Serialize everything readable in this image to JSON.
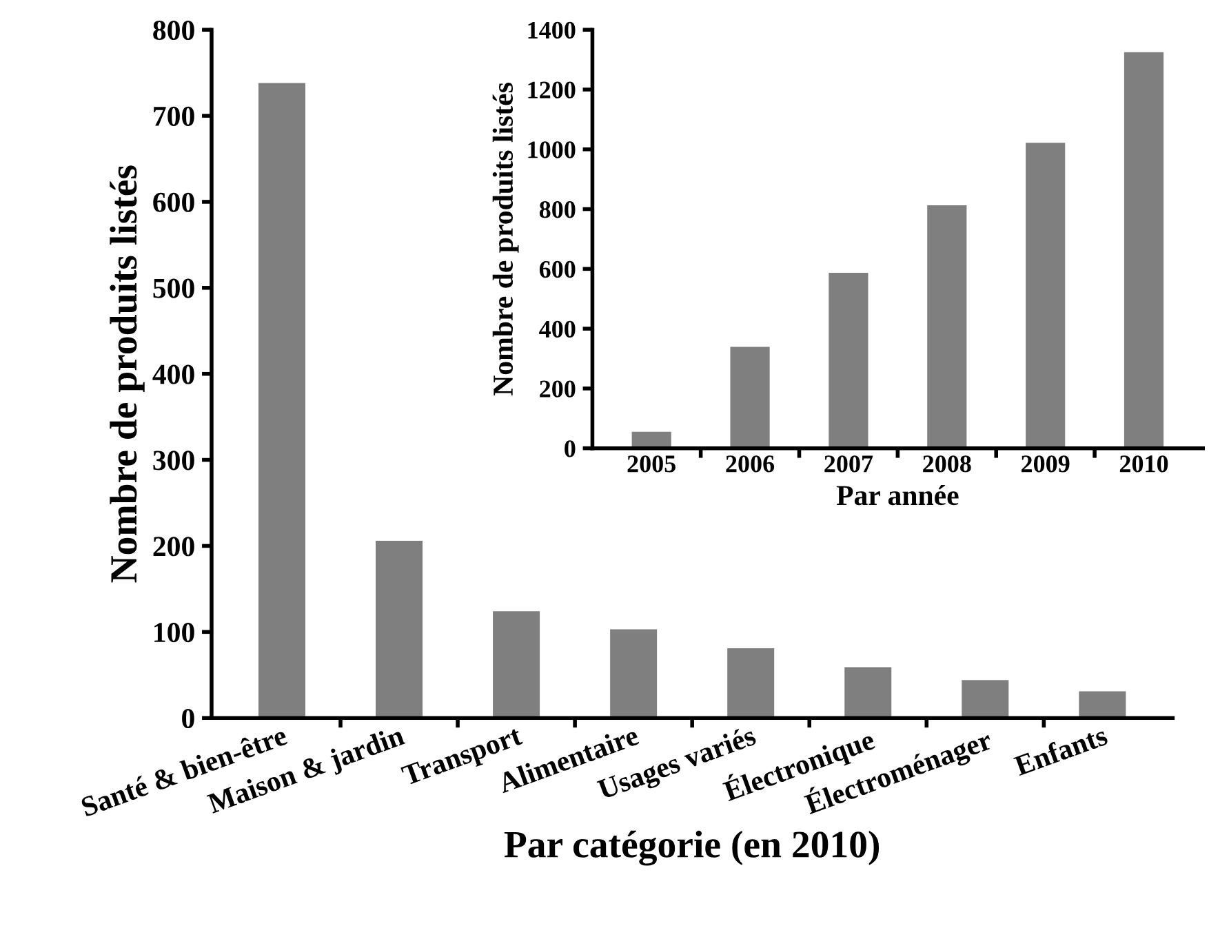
{
  "chart_data": [
    {
      "type": "bar",
      "xlabel": "Par catégorie (en 2010)",
      "ylabel": "Nombre de produits listés",
      "categories": [
        "Santé & bien-être",
        "Maison & jardin",
        "Transport",
        "Alimentaire",
        "Usages variés",
        "Électronique",
        "Électroménager",
        "Enfants"
      ],
      "values": [
        738,
        206,
        124,
        103,
        81,
        59,
        44,
        31
      ],
      "color": "#7f7f7f",
      "ylim": [
        0,
        800
      ],
      "yticks": [
        0,
        100,
        200,
        300,
        400,
        500,
        600,
        700,
        800
      ],
      "grid": false
    },
    {
      "type": "bar",
      "xlabel": "Par année",
      "ylabel": "Nombre de produits listés",
      "categories": [
        "2005",
        "2006",
        "2007",
        "2008",
        "2009",
        "2010"
      ],
      "values": [
        55,
        339,
        587,
        813,
        1022,
        1325
      ],
      "color": "#7f7f7f",
      "ylim": [
        0,
        1400
      ],
      "yticks": [
        0,
        200,
        400,
        600,
        800,
        1000,
        1200,
        1400
      ],
      "grid": false
    }
  ]
}
